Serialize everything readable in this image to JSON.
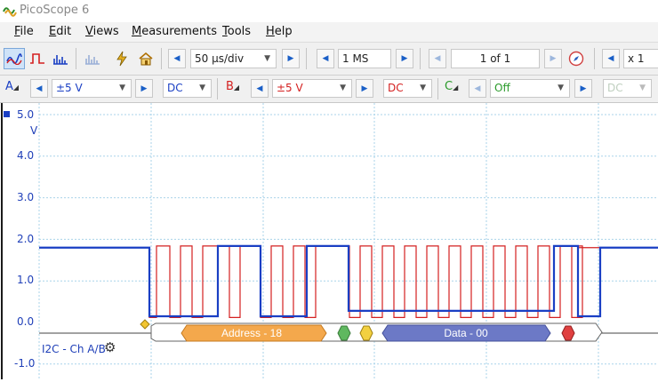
{
  "app": {
    "title": "PicoScope 6"
  },
  "menu": [
    {
      "key": "F",
      "rest": "ile"
    },
    {
      "key": "E",
      "rest": "dit"
    },
    {
      "key": "V",
      "rest": "iews"
    },
    {
      "key": "M",
      "rest": "easurements"
    },
    {
      "key": "T",
      "rest": "ools"
    },
    {
      "key": "H",
      "rest": "elp"
    }
  ],
  "toolbar": {
    "timebase": "50 µs/div",
    "samples": "1 MS",
    "buffer": "1 of 1",
    "zoom": "x 1"
  },
  "channels": {
    "a": {
      "label": "A",
      "range": "±5 V",
      "coupling": "DC",
      "color": "#1a3fc4"
    },
    "b": {
      "label": "B",
      "range": "±5 V",
      "coupling": "DC",
      "color": "#d42020"
    },
    "c": {
      "label": "C",
      "range": "Off",
      "coupling": "DC",
      "color": "#2a9a2a"
    }
  },
  "axis": {
    "unit": "V",
    "ticks": [
      "5.0",
      "4.0",
      "3.0",
      "2.0",
      "1.0",
      "0.0",
      "-1.0"
    ]
  },
  "decoder": {
    "label": "I2C - Ch A/B",
    "address_packet": "Address - 18",
    "data_packet": "Data - 00"
  }
}
